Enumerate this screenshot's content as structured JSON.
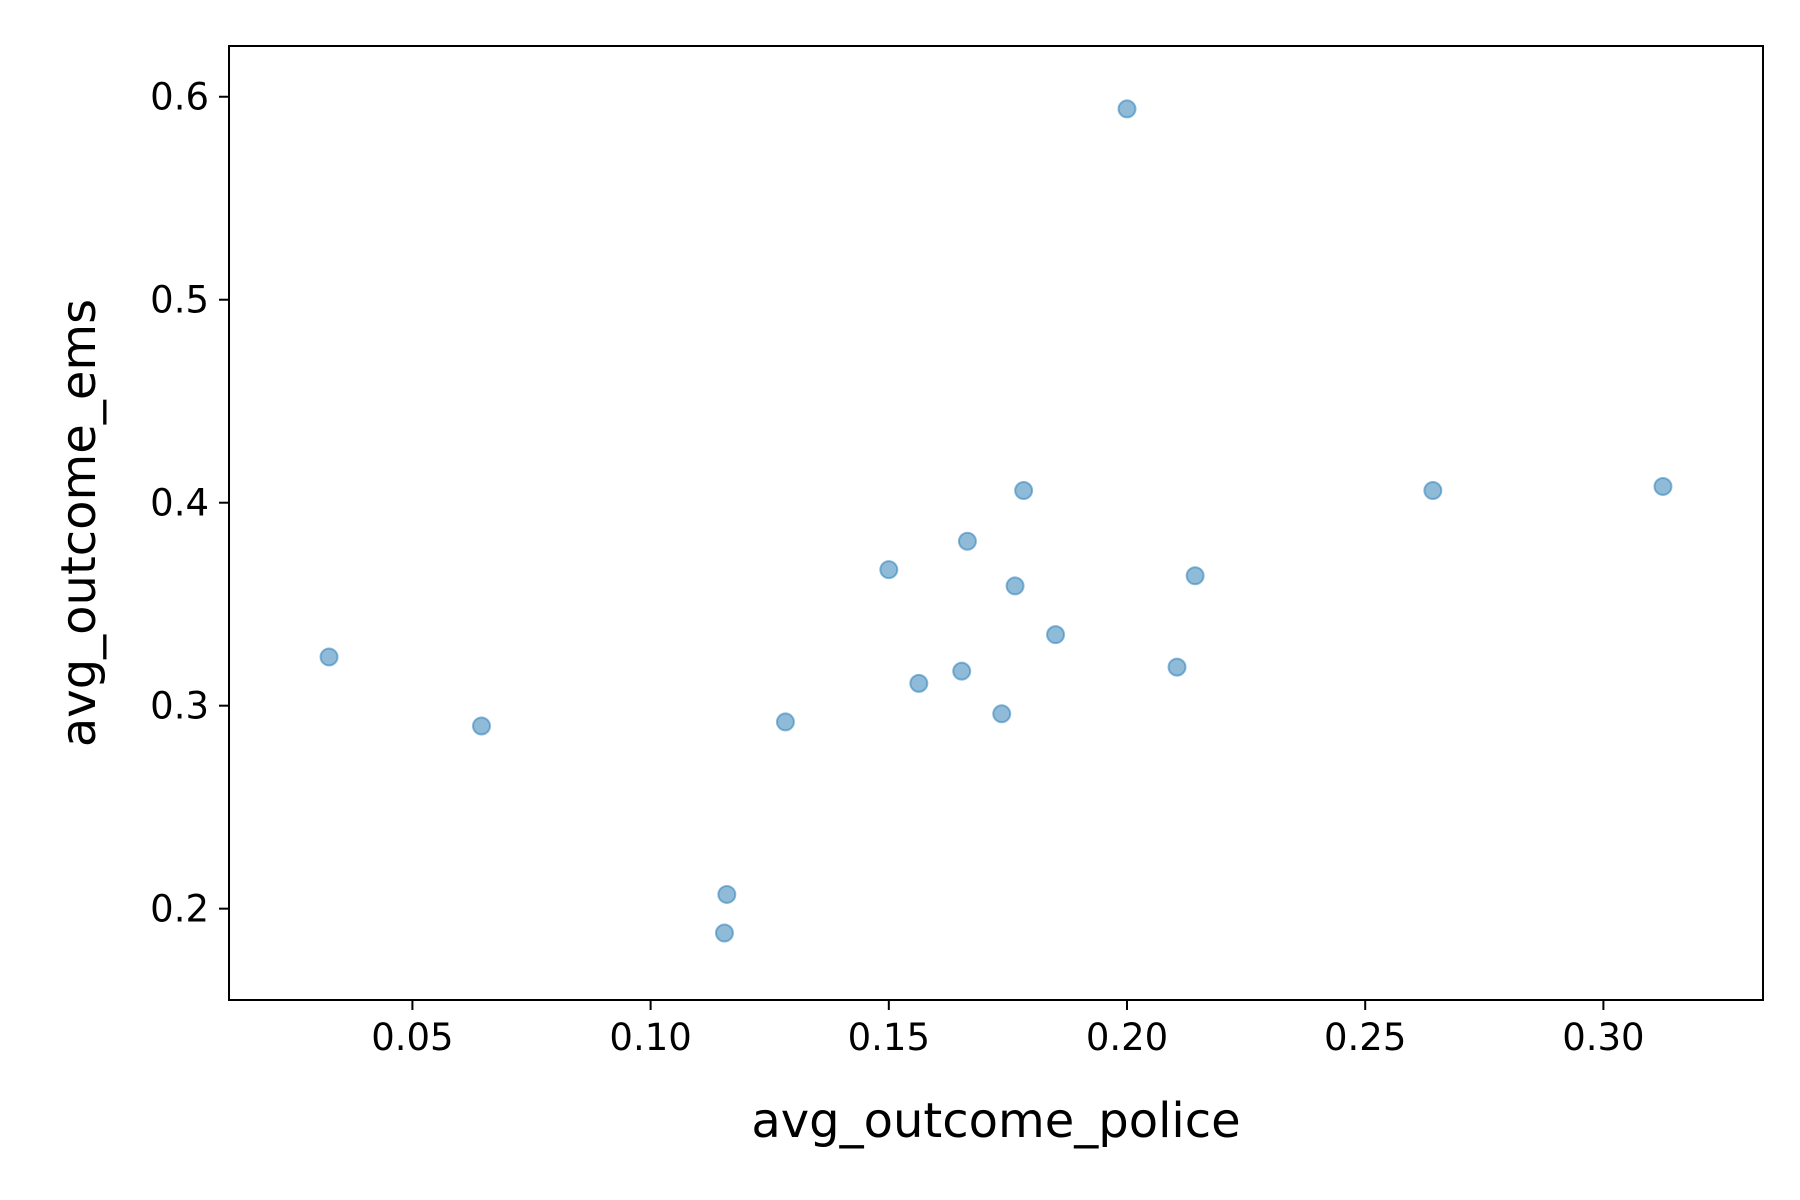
{
  "chart_data": {
    "type": "scatter",
    "title": "",
    "xlabel": "avg_outcome_police",
    "ylabel": "avg_outcome_ems",
    "xlim": [
      0.0115,
      0.3335
    ],
    "ylim": [
      0.155,
      0.625
    ],
    "xticks": [
      0.05,
      0.1,
      0.15,
      0.2,
      0.25,
      0.3
    ],
    "xtick_labels": [
      "0.05",
      "0.10",
      "0.15",
      "0.20",
      "0.25",
      "0.30"
    ],
    "yticks": [
      0.2,
      0.3,
      0.4,
      0.5,
      0.6
    ],
    "ytick_labels": [
      "0.2",
      "0.3",
      "0.4",
      "0.5",
      "0.6"
    ],
    "grid": false,
    "legend": "none",
    "marker_color": "#1f77b4",
    "marker_alpha": 0.5,
    "x": [
      0.0325,
      0.0645,
      0.1155,
      0.116,
      0.1283,
      0.15,
      0.1563,
      0.1653,
      0.1665,
      0.1737,
      0.1765,
      0.1783,
      0.185,
      0.2,
      0.2105,
      0.2143,
      0.2642,
      0.3125
    ],
    "y": [
      0.324,
      0.29,
      0.188,
      0.207,
      0.292,
      0.367,
      0.311,
      0.317,
      0.381,
      0.296,
      0.359,
      0.406,
      0.335,
      0.594,
      0.319,
      0.364,
      0.406,
      0.408
    ]
  }
}
